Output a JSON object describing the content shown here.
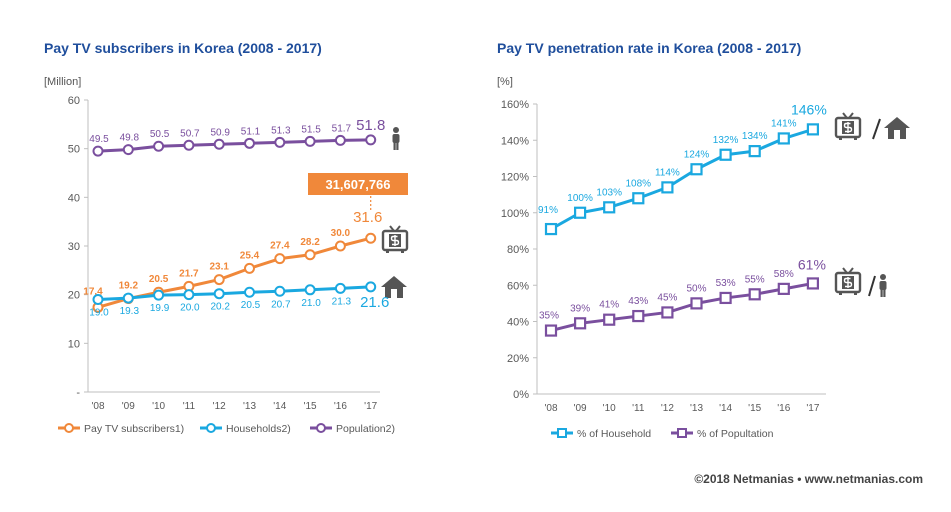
{
  "footer": "©2018 Netmanias • www.netmanias.com",
  "chart_data": [
    {
      "type": "line",
      "title": "Pay TV subscribers in Korea (2008 - 2017)",
      "ylabel": "[Million]",
      "ylim": [
        0,
        60
      ],
      "y_ticks": [
        "-",
        "10",
        "20",
        "30",
        "40",
        "50",
        "60"
      ],
      "categories": [
        "'08",
        "'09",
        "'10",
        "'11",
        "'12",
        "'13",
        "'14",
        "'15",
        "'16",
        "'17"
      ],
      "series": [
        {
          "name": "Pay TV subscribers1)",
          "color": "#f0883a",
          "values": [
            17.4,
            19.2,
            20.5,
            21.7,
            23.1,
            25.4,
            27.4,
            28.2,
            30.0,
            31.6
          ],
          "labels": [
            "17.4",
            "19.2",
            "20.5",
            "21.7",
            "23.1",
            "25.4",
            "27.4",
            "28.2",
            "30.0",
            "31.6"
          ]
        },
        {
          "name": "Households2)",
          "color": "#1aa8e0",
          "values": [
            19.0,
            19.3,
            19.9,
            20.0,
            20.2,
            20.5,
            20.7,
            21.0,
            21.3,
            21.6
          ],
          "labels": [
            "19.0",
            "19.3",
            "19.9",
            "20.0",
            "20.2",
            "20.5",
            "20.7",
            "21.0",
            "21.3",
            "21.6"
          ]
        },
        {
          "name": "Population2)",
          "color": "#7a4f9e",
          "values": [
            49.5,
            49.8,
            50.5,
            50.7,
            50.9,
            51.1,
            51.3,
            51.5,
            51.7,
            51.8
          ],
          "labels": [
            "49.5",
            "49.8",
            "50.5",
            "50.7",
            "50.9",
            "51.1",
            "51.3",
            "51.5",
            "51.7",
            "51.8"
          ]
        }
      ],
      "callout": {
        "text": "31,607,766",
        "color": "#f0883a"
      },
      "icons": [
        "person-icon",
        "tv-icon",
        "house-icon"
      ]
    },
    {
      "type": "line",
      "title": "Pay TV penetration rate in Korea (2008 - 2017)",
      "ylabel": "[%]",
      "ylim": [
        0,
        160
      ],
      "y_ticks": [
        "0%",
        "20%",
        "40%",
        "60%",
        "80%",
        "100%",
        "120%",
        "140%",
        "160%"
      ],
      "categories": [
        "'08",
        "'09",
        "'10",
        "'11",
        "'12",
        "'13",
        "'14",
        "'15",
        "'16",
        "'17"
      ],
      "series": [
        {
          "name": "% of Household",
          "color": "#1aa8e0",
          "values": [
            91,
            100,
            103,
            108,
            114,
            124,
            132,
            134,
            141,
            146
          ],
          "labels": [
            "91%",
            "100%",
            "103%",
            "108%",
            "114%",
            "124%",
            "132%",
            "134%",
            "141%",
            "146%"
          ]
        },
        {
          "name": "% of Popultation",
          "color": "#7a4f9e",
          "values": [
            35,
            39,
            41,
            43,
            45,
            50,
            53,
            55,
            58,
            61
          ],
          "labels": [
            "35%",
            "39%",
            "41%",
            "43%",
            "45%",
            "50%",
            "53%",
            "55%",
            "58%",
            "61%"
          ]
        }
      ],
      "icons": [
        "tv-per-house-icon",
        "tv-per-person-icon"
      ]
    }
  ]
}
